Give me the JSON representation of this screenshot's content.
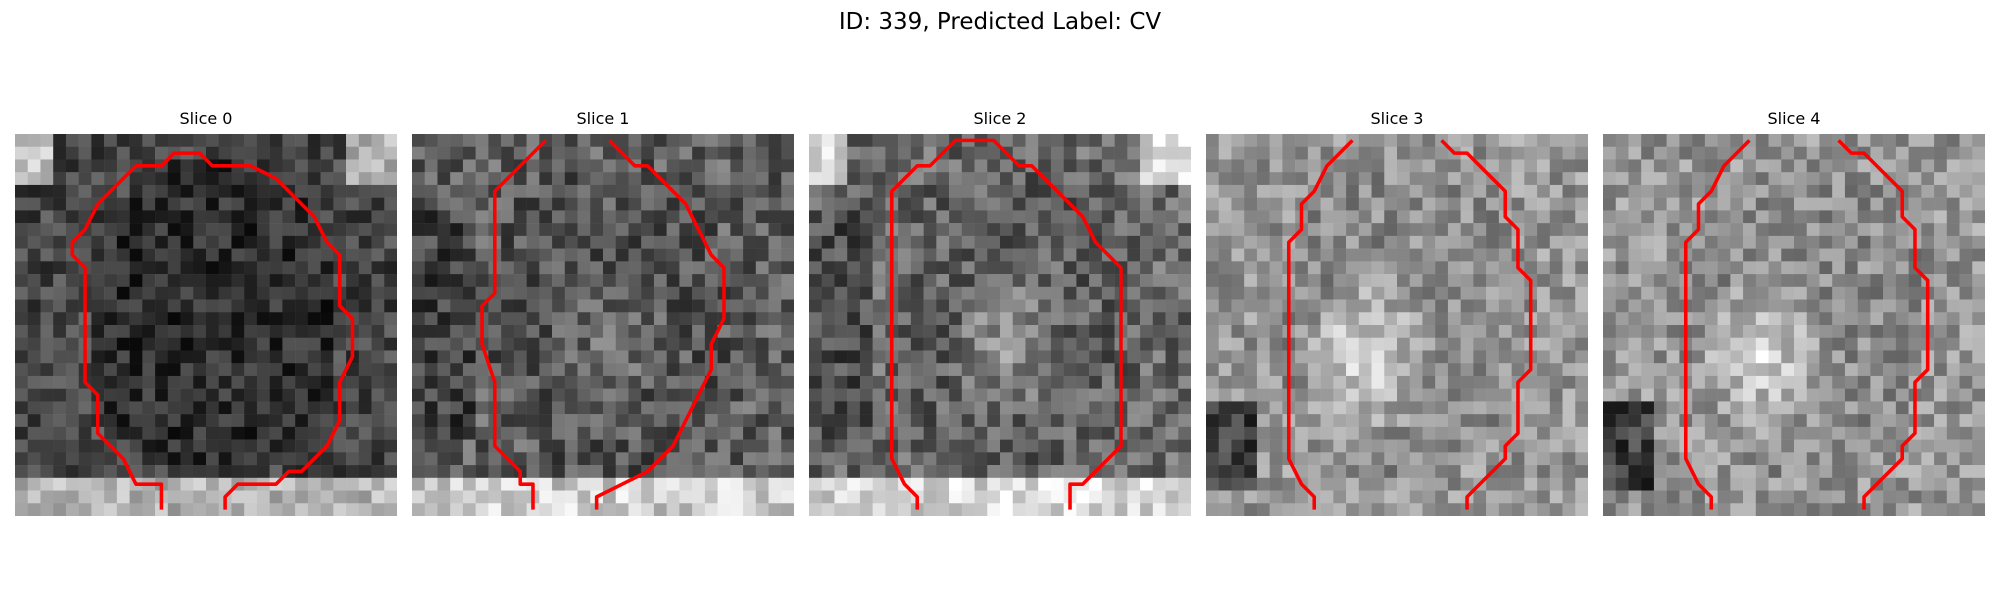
{
  "figure": {
    "title": "ID: 339, Predicted Label: CV",
    "contour_color": "#ff0000",
    "colormap": "gray",
    "slices": [
      {
        "label": "Slice 0"
      },
      {
        "label": "Slice 1"
      },
      {
        "label": "Slice 2"
      },
      {
        "label": "Slice 3"
      },
      {
        "label": "Slice 4"
      }
    ]
  }
}
